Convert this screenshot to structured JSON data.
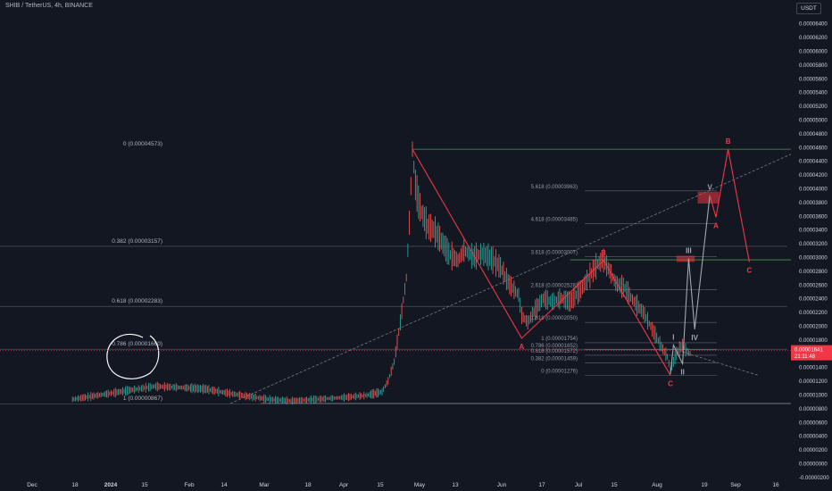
{
  "header": {
    "symbol_title": "SHIB / TetherUS, 4h, BINANCE",
    "currency": "USDT"
  },
  "chart_data": {
    "type": "line",
    "title": "SHIB / TetherUS, 4h, BINANCE",
    "xlabel": "",
    "ylabel": "",
    "ylim": [
      0,
      6.6e-05
    ],
    "grid": false,
    "price_axis": {
      "min": 0,
      "max": 6.4e-05,
      "step": 2e-06,
      "labels": [
        "-0.00000200",
        "0.00000000",
        "0.00000200",
        "0.00000400",
        "0.00000600",
        "0.00000800",
        "0.00001000",
        "0.00001200",
        "0.00001400",
        "0.00001600",
        "0.00001800",
        "0.00002000",
        "0.00002200",
        "0.00002400",
        "0.00002600",
        "0.00002800",
        "0.00003000",
        "0.00003200",
        "0.00003400",
        "0.00003600",
        "0.00003800",
        "0.00004000",
        "0.00004200",
        "0.00004400",
        "0.00004600",
        "0.00004800",
        "0.00005000",
        "0.00005200",
        "0.00005400",
        "0.00005600",
        "0.00005800",
        "0.00006000",
        "0.00006200",
        "0.00006400"
      ]
    },
    "time_axis": [
      "Dec",
      "18",
      "2024",
      "15",
      "Feb",
      "14",
      "Mar",
      "18",
      "Apr",
      "15",
      "May",
      "13",
      "Jun",
      "17",
      "Jul",
      "15",
      "Aug",
      "19",
      "Sep",
      "16"
    ],
    "current_price": {
      "value": 1.641e-05,
      "label": "0.00001641",
      "countdown": "21:11:48",
      "color": "#f23645"
    },
    "series": [
      {
        "values": [
          [
            -62,
            9.3e-06
          ],
          [
            -55,
            9.8e-06
          ],
          [
            -45,
            1.05e-05
          ],
          [
            -35,
            1.12e-05
          ],
          [
            -25,
            1.1e-05
          ],
          [
            -18,
            1.08e-05
          ],
          [
            -12,
            1.03e-05
          ],
          [
            -5,
            9.8e-06
          ],
          [
            3,
            9.3e-06
          ],
          [
            10,
            9.1e-06
          ],
          [
            18,
            9.3e-06
          ],
          [
            28,
            9.6e-06
          ],
          [
            35,
            9.9e-06
          ],
          [
            40,
            1.04e-05
          ],
          [
            42,
            1.2e-05
          ],
          [
            44,
            1.48e-05
          ],
          [
            46,
            2.05e-05
          ],
          [
            48,
            2.7e-05
          ],
          [
            49,
            3.5e-05
          ],
          [
            50,
            4.57e-05
          ],
          [
            51,
            4.05e-05
          ],
          [
            52,
            3.8e-05
          ],
          [
            53,
            3.65e-05
          ],
          [
            55,
            3.45e-05
          ],
          [
            57,
            3.4e-05
          ],
          [
            60,
            3.2e-05
          ],
          [
            62,
            3.05e-05
          ],
          [
            65,
            2.95e-05
          ],
          [
            67,
            3.1e-05
          ],
          [
            70,
            3e-05
          ],
          [
            73,
            3.05e-05
          ],
          [
            76,
            2.98e-05
          ],
          [
            79,
            2.85e-05
          ],
          [
            82,
            2.6e-05
          ],
          [
            85,
            2.45e-05
          ],
          [
            86,
            2.15e-05
          ],
          [
            88,
            2.05e-05
          ],
          [
            90,
            2.2e-05
          ],
          [
            93,
            2.4e-05
          ],
          [
            96,
            2.35e-05
          ],
          [
            99,
            2.4e-05
          ],
          [
            102,
            2.35e-05
          ],
          [
            105,
            2.5e-05
          ],
          [
            108,
            2.7e-05
          ],
          [
            111,
            2.9e-05
          ],
          [
            113,
            2.95e-05
          ],
          [
            115,
            2.8e-05
          ],
          [
            117,
            2.62e-05
          ],
          [
            120,
            2.55e-05
          ],
          [
            123,
            2.35e-05
          ],
          [
            126,
            2.2e-05
          ],
          [
            129,
            1.95e-05
          ],
          [
            132,
            1.7e-05
          ],
          [
            134,
            1.55e-05
          ],
          [
            135,
            1.35e-05
          ],
          [
            137,
            1.6e-05
          ],
          [
            139,
            1.72e-05
          ],
          [
            140,
            1.65e-05
          ],
          [
            142,
            1.58e-05
          ]
        ],
        "color": "#d1d4dc"
      }
    ],
    "fib_levels_left": [
      {
        "ratio": "0",
        "label": "0 (0.00004573)",
        "value": 4.573e-05,
        "color": "#4caf50"
      },
      {
        "ratio": "0.382",
        "label": "0.382 (0.00003157)",
        "value": 3.157e-05,
        "color": "#b2b5be"
      },
      {
        "ratio": "0.618",
        "label": "0.618 (0.00002283)",
        "value": 2.283e-05,
        "color": "#b2b5be"
      },
      {
        "ratio": "0.786",
        "label": "0.786 (0.00001660)",
        "value": 1.66e-05,
        "color": "#b2b5be"
      },
      {
        "ratio": "1",
        "label": "1 (0.00000867)",
        "value": 8.67e-06,
        "color": "#b2b5be"
      }
    ],
    "fib_extension_right": [
      {
        "label": "5.618 (0.00003963)",
        "value": 3.963e-05
      },
      {
        "label": "4.618 (0.00003485)",
        "value": 3.485e-05
      },
      {
        "label": "3.618 (0.00003007)",
        "value": 3.007e-05
      },
      {
        "label": "2.618 (0.00002528)",
        "value": 2.528e-05
      },
      {
        "label": "1.618 (0.00002050)",
        "value": 2.05e-05
      },
      {
        "label": "1 (0.00001754)",
        "value": 1.754e-05
      },
      {
        "label": "0.786 (0.00001652)",
        "value": 1.652e-05
      },
      {
        "label": "0.618 (0.00001572)",
        "value": 1.572e-05
      },
      {
        "label": "0.382 (0.00001459)",
        "value": 1.459e-05
      },
      {
        "label": "0 (0.00001276)",
        "value": 1.276e-05
      }
    ],
    "wave_abc": [
      {
        "label": "",
        "t": 50,
        "v": 4.57e-05
      },
      {
        "label": "A",
        "t": 86,
        "v": 1.82e-05
      },
      {
        "label": "B",
        "t": 113,
        "v": 2.95e-05
      },
      {
        "label": "C",
        "t": 135,
        "v": 1.28e-05
      }
    ],
    "projection_impulse": [
      {
        "label": "",
        "t": 135,
        "v": 1.3e-05
      },
      {
        "label": "I",
        "t": 136,
        "v": 1.72e-05
      },
      {
        "label": "II",
        "t": 139,
        "v": 1.45e-05
      },
      {
        "label": "III",
        "t": 141,
        "v": 2.98e-05
      },
      {
        "label": "IV",
        "t": 143,
        "v": 1.95e-05
      },
      {
        "label": "V",
        "t": 148,
        "v": 3.9e-05
      }
    ],
    "projection_abc": [
      {
        "label": "",
        "t": 148,
        "v": 3.9e-05
      },
      {
        "label": "A",
        "t": 150,
        "v": 3.58e-05
      },
      {
        "label": "B",
        "t": 154,
        "v": 4.57e-05
      },
      {
        "label": "C",
        "t": 161,
        "v": 2.93e-05
      }
    ],
    "zones": [
      {
        "t0": 137,
        "t1": 143,
        "v0": 2.93e-05,
        "v1": 3.02e-05,
        "color": "#f23645"
      },
      {
        "t0": 144,
        "t1": 151,
        "v0": 3.78e-05,
        "v1": 3.95e-05,
        "color": "#f23645"
      }
    ],
    "trendlines": [
      {
        "t0": -10,
        "v0": 8.7e-06,
        "t1": 180,
        "v1": 4.6e-05,
        "style": "dashed"
      },
      {
        "t0": 139,
        "v0": 1.62e-05,
        "t1": 164,
        "v1": 1.28e-05,
        "style": "dashed"
      }
    ],
    "horizontal_lines": [
      {
        "v": 4.57e-05,
        "t0": 50,
        "t1": 180,
        "color": "#4caf50"
      },
      {
        "v": 2.96e-05,
        "t0": 102,
        "t1": 180,
        "color": "#4caf50"
      },
      {
        "v": 8.7e-06,
        "t0": 0,
        "t1": 180,
        "color": "#b2b5be"
      }
    ]
  },
  "colors": {
    "background": "#131722",
    "axis_text": "#d1d4dc",
    "wave_red": "#f23645",
    "projection_white": "#d1d4dc",
    "fib_green": "#4caf50"
  }
}
